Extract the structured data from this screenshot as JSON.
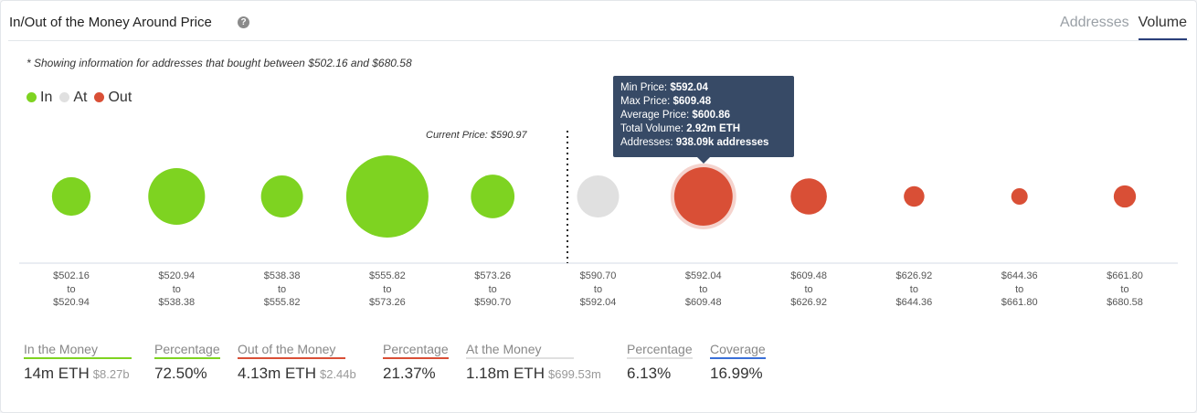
{
  "header": {
    "title": "In/Out of the Money Around Price",
    "help_icon": "question-circle-icon",
    "tabs": [
      {
        "label": "Addresses",
        "active": false
      },
      {
        "label": "Volume",
        "active": true
      }
    ]
  },
  "note": "* Showing information for addresses that bought between $502.16 and $680.58",
  "legend": [
    {
      "label": "In",
      "color": "#7ed321"
    },
    {
      "label": "At",
      "color": "#e0e0e0"
    },
    {
      "label": "Out",
      "color": "#d94f36"
    }
  ],
  "current_price_label": "Current Price: $590.97",
  "bins": [
    {
      "from": "$502.16",
      "to": "$520.94",
      "status": "in",
      "relative_size": 0.47
    },
    {
      "from": "$520.94",
      "to": "$538.38",
      "status": "in",
      "relative_size": 0.69
    },
    {
      "from": "$538.38",
      "to": "$555.82",
      "status": "in",
      "relative_size": 0.51
    },
    {
      "from": "$555.82",
      "to": "$573.26",
      "status": "in",
      "relative_size": 1.0
    },
    {
      "from": "$573.26",
      "to": "$590.70",
      "status": "in",
      "relative_size": 0.53
    },
    {
      "from": "$590.70",
      "to": "$592.04",
      "status": "at",
      "relative_size": 0.51
    },
    {
      "from": "$592.04",
      "to": "$609.48",
      "status": "out",
      "relative_size": 0.71,
      "hovered": true
    },
    {
      "from": "$609.48",
      "to": "$626.92",
      "status": "out",
      "relative_size": 0.44
    },
    {
      "from": "$626.92",
      "to": "$644.36",
      "status": "out",
      "relative_size": 0.25
    },
    {
      "from": "$644.36",
      "to": "$661.80",
      "status": "out",
      "relative_size": 0.2
    },
    {
      "from": "$661.80",
      "to": "$680.58",
      "status": "out",
      "relative_size": 0.27
    }
  ],
  "to_word": "to",
  "tooltip": {
    "rows": [
      {
        "label": "Min Price: ",
        "value": "$592.04"
      },
      {
        "label": "Max Price: ",
        "value": "$609.48"
      },
      {
        "label": "Average Price: ",
        "value": "$600.86"
      },
      {
        "label": "Total Volume: ",
        "value": "2.92m ETH"
      },
      {
        "label": "Addresses: ",
        "value": "938.09k addresses"
      }
    ]
  },
  "stats": [
    {
      "label": "In the Money",
      "value": "14m ETH",
      "sub": "$8.27b",
      "color": "#7ed321"
    },
    {
      "label": "Percentage",
      "value": "72.50%",
      "sub": "",
      "color": "#7ed321"
    },
    {
      "label": "Out of the Money",
      "value": "4.13m ETH",
      "sub": "$2.44b",
      "color": "#d94f36"
    },
    {
      "label": "Percentage",
      "value": "21.37%",
      "sub": "",
      "color": "#d94f36"
    },
    {
      "label": "At the Money",
      "value": "1.18m ETH",
      "sub": "$699.53m",
      "color": "#e0e0e0"
    },
    {
      "label": "Percentage",
      "value": "6.13%",
      "sub": "",
      "color": "#e0e0e0"
    },
    {
      "label": "Coverage",
      "value": "16.99%",
      "sub": "",
      "color": "#3a6fd8"
    }
  ]
}
